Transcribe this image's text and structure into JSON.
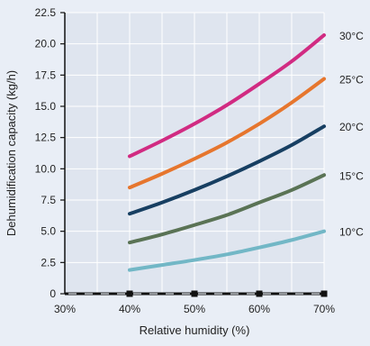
{
  "chart_data": {
    "type": "line",
    "title": "",
    "xlabel": "Relative humidity (%)",
    "ylabel": "Dehumidification capacity (kg/h)",
    "xlim": [
      30,
      70
    ],
    "ylim": [
      0,
      22.5
    ],
    "x_ticks": [
      {
        "value": 30,
        "label": "30%"
      },
      {
        "value": 40,
        "label": "40%"
      },
      {
        "value": 50,
        "label": "50%"
      },
      {
        "value": 60,
        "label": "60%"
      },
      {
        "value": 70,
        "label": "70%"
      }
    ],
    "y_ticks": [
      {
        "value": 0,
        "label": "0"
      },
      {
        "value": 2.5,
        "label": "2.5"
      },
      {
        "value": 5,
        "label": "5.0"
      },
      {
        "value": 7.5,
        "label": "7.5"
      },
      {
        "value": 10,
        "label": "10.0"
      },
      {
        "value": 12.5,
        "label": "12.5"
      },
      {
        "value": 15,
        "label": "15.0"
      },
      {
        "value": 17.5,
        "label": "17.5"
      },
      {
        "value": 20,
        "label": "20.0"
      },
      {
        "value": 22.5,
        "label": "22.5"
      }
    ],
    "grid": true,
    "x": [
      40,
      45,
      50,
      55,
      60,
      65,
      70
    ],
    "series": [
      {
        "name": "30°C",
        "color": "#d12b82",
        "values": [
          11.0,
          12.25,
          13.6,
          15.1,
          16.8,
          18.6,
          20.7
        ]
      },
      {
        "name": "25°C",
        "color": "#e6762e",
        "values": [
          8.5,
          9.6,
          10.8,
          12.1,
          13.6,
          15.3,
          17.2
        ]
      },
      {
        "name": "20°C",
        "color": "#173f62",
        "values": [
          6.4,
          7.3,
          8.3,
          9.4,
          10.6,
          11.9,
          13.4
        ]
      },
      {
        "name": "15°C",
        "color": "#5a7355",
        "values": [
          4.1,
          4.75,
          5.5,
          6.3,
          7.3,
          8.3,
          9.5
        ]
      },
      {
        "name": "10°C",
        "color": "#72b7c6",
        "values": [
          1.9,
          2.3,
          2.7,
          3.15,
          3.7,
          4.3,
          5.0
        ]
      }
    ]
  }
}
